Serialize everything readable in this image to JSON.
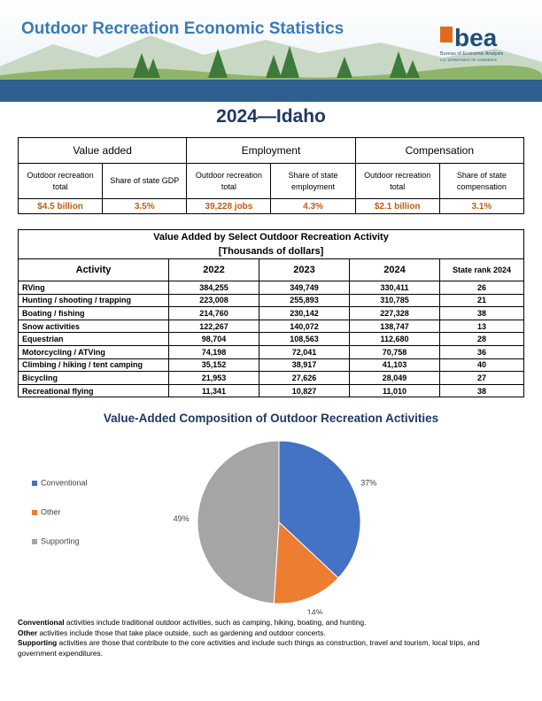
{
  "header": {
    "title": "Outdoor Recreation Economic Statistics",
    "logo": "bea",
    "logo_subtitle": "Bureau of Economic Analysis",
    "logo_dept": "U.S. DEPARTMENT OF COMMERCE"
  },
  "page_title": "2024—Idaho",
  "summary": {
    "groups": [
      "Value added",
      "Employment",
      "Compensation"
    ],
    "columns": [
      "Outdoor recreation total",
      "Share of state GDP",
      "Outdoor recreation total",
      "Share of state employment",
      "Outdoor recreation total",
      "Share of state compensation"
    ],
    "values": [
      "$4.5 billion",
      "3.5%",
      "39,228 jobs",
      "4.3%",
      "$2.1 billion",
      "3.1%"
    ]
  },
  "activity_table": {
    "title": "Value Added by Select Outdoor Recreation Activity",
    "subtitle": "[Thousands of dollars]",
    "columns": [
      "Activity",
      "2022",
      "2023",
      "2024",
      "State rank 2024"
    ],
    "rows": [
      [
        "RVing",
        "384,255",
        "349,749",
        "330,411",
        "26"
      ],
      [
        "Hunting / shooting / trapping",
        "223,008",
        "255,893",
        "310,785",
        "21"
      ],
      [
        "Boating / fishing",
        "214,760",
        "230,142",
        "227,328",
        "38"
      ],
      [
        "Snow activities",
        "122,267",
        "140,072",
        "138,747",
        "13"
      ],
      [
        "Equestrian",
        "98,704",
        "108,563",
        "112,680",
        "28"
      ],
      [
        "Motorcycling / ATVing",
        "74,198",
        "72,041",
        "70,758",
        "36"
      ],
      [
        "Climbing / hiking / tent camping",
        "35,152",
        "38,917",
        "41,103",
        "40"
      ],
      [
        "Bicycling",
        "21,953",
        "27,626",
        "28,049",
        "27"
      ],
      [
        "Recreational flying",
        "11,341",
        "10,827",
        "11,010",
        "38"
      ]
    ]
  },
  "chart_data": {
    "type": "pie",
    "title": "Value-Added Composition of Outdoor Recreation Activities",
    "categories": [
      "Conventional",
      "Other",
      "Supporting"
    ],
    "values": [
      37,
      14,
      49
    ],
    "value_labels": [
      "37%",
      "14%",
      "49%"
    ],
    "colors": [
      "#4472c4",
      "#ed7d31",
      "#a5a5a5"
    ],
    "legend": "left"
  },
  "notes": [
    {
      "term": "Conventional",
      "text": " activities include traditional outdoor activities, such as camping, hiking, boating, and hunting."
    },
    {
      "term": "Other",
      "text": " activities include those that take place outside, such as gardening and outdoor concerts."
    },
    {
      "term": "Supporting",
      "text": " activities are those that contribute to the core activities and include such things as construction, travel and tourism, local trips, and government expenditures."
    }
  ]
}
